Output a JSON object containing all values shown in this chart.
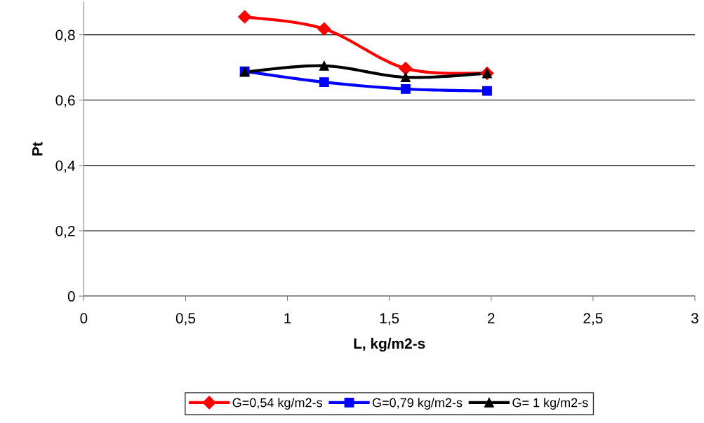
{
  "chart_data": {
    "type": "line",
    "xlabel": "L, kg/m2-s",
    "ylabel": "Pt",
    "xlim": [
      0,
      3
    ],
    "xticks": [
      0,
      {
        "value": 0.5,
        "label": "0,5"
      },
      1,
      {
        "value": 1.5,
        "label": "1,5"
      },
      2,
      {
        "value": 2.5,
        "label": "2,5"
      },
      3
    ],
    "ylim": [
      0,
      0.9
    ],
    "yticks": [
      0,
      {
        "value": 0.2,
        "label": "0,2"
      },
      {
        "value": 0.4,
        "label": "0,4"
      },
      {
        "value": 0.6,
        "label": "0,6"
      },
      {
        "value": 0.8,
        "label": "0,8"
      }
    ],
    "grid": "y",
    "legend": "bottom",
    "x": [
      0.79,
      1.18,
      1.58,
      1.98
    ],
    "series": [
      {
        "name": "G=0,54 kg/m2-s",
        "color": "#ff0000",
        "marker": "diamond",
        "values": [
          0.855,
          0.818,
          0.697,
          0.682
        ]
      },
      {
        "name": "G=0,79 kg/m2-s",
        "color": "#0000ff",
        "marker": "square",
        "values": [
          0.688,
          0.655,
          0.634,
          0.628
        ]
      },
      {
        "name": "G= 1 kg/m2-s",
        "color": "#000000",
        "marker": "triangle",
        "values": [
          0.686,
          0.705,
          0.67,
          0.682
        ]
      }
    ]
  }
}
